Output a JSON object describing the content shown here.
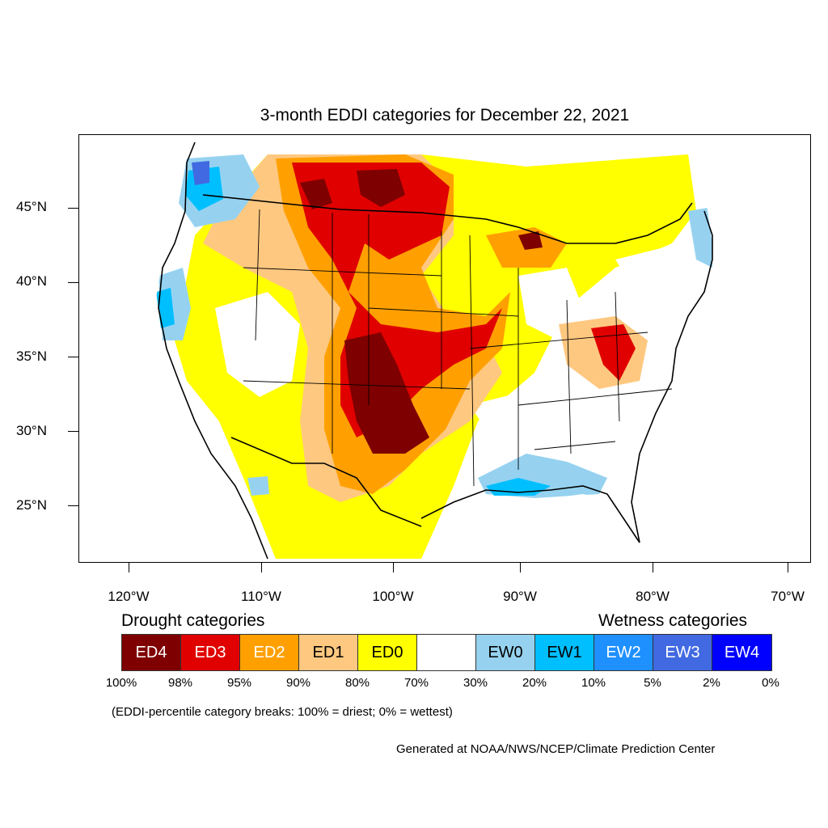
{
  "title": "3-month EDDI categories for December 22, 2021",
  "axes": {
    "lat_labels": [
      "45°N",
      "40°N",
      "35°N",
      "30°N",
      "25°N"
    ],
    "lon_labels": [
      "120°W",
      "110°W",
      "100°W",
      "90°W",
      "80°W",
      "70°W"
    ]
  },
  "legend": {
    "drought_heading": "Drought categories",
    "wetness_heading": "Wetness categories",
    "categories": [
      {
        "label": "ED4",
        "color": "#7f0000",
        "text_color": "#ffffff"
      },
      {
        "label": "ED3",
        "color": "#e00000",
        "text_color": "#ffffff"
      },
      {
        "label": "ED2",
        "color": "#ffa000",
        "text_color": "#ffffff"
      },
      {
        "label": "ED1",
        "color": "#ffc880",
        "text_color": "#000000"
      },
      {
        "label": "ED0",
        "color": "#ffff00",
        "text_color": "#000000"
      },
      {
        "label": "",
        "color": "#ffffff",
        "text_color": "#000000"
      },
      {
        "label": "EW0",
        "color": "#96d2f0",
        "text_color": "#000000"
      },
      {
        "label": "EW1",
        "color": "#00bfff",
        "text_color": "#000000"
      },
      {
        "label": "EW2",
        "color": "#1e90ff",
        "text_color": "#ffffff"
      },
      {
        "label": "EW3",
        "color": "#4169e1",
        "text_color": "#ffffff"
      },
      {
        "label": "EW4",
        "color": "#0000ff",
        "text_color": "#ffffff"
      }
    ],
    "percentiles": [
      "100%",
      "98%",
      "95%",
      "90%",
      "80%",
      "70%",
      "30%",
      "20%",
      "10%",
      "5%",
      "2%",
      "0%"
    ],
    "note": "(EDDI-percentile category breaks: 100% = driest; 0% = wettest)"
  },
  "credit": "Generated at NOAA/NWS/NCEP/Climate Prediction Center"
}
